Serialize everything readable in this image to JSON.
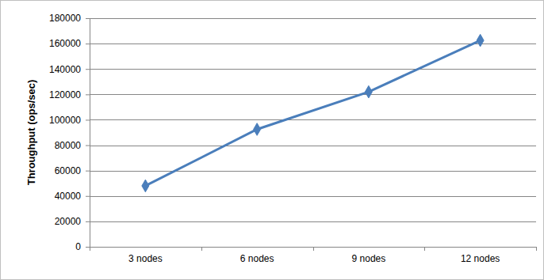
{
  "chart_data": {
    "type": "line",
    "ylabel": "Throughput (ops/sec)",
    "categories": [
      "3 nodes",
      "6 nodes",
      "9 nodes",
      "12 nodes"
    ],
    "values": [
      48000,
      92500,
      122000,
      162500
    ],
    "color": "#4a7ebb",
    "marker": "diamond",
    "line_style": "solid",
    "ylim": [
      0,
      180000
    ],
    "yticks": [
      0,
      20000,
      40000,
      60000,
      80000,
      100000,
      120000,
      140000,
      160000,
      180000
    ],
    "grid": true
  }
}
